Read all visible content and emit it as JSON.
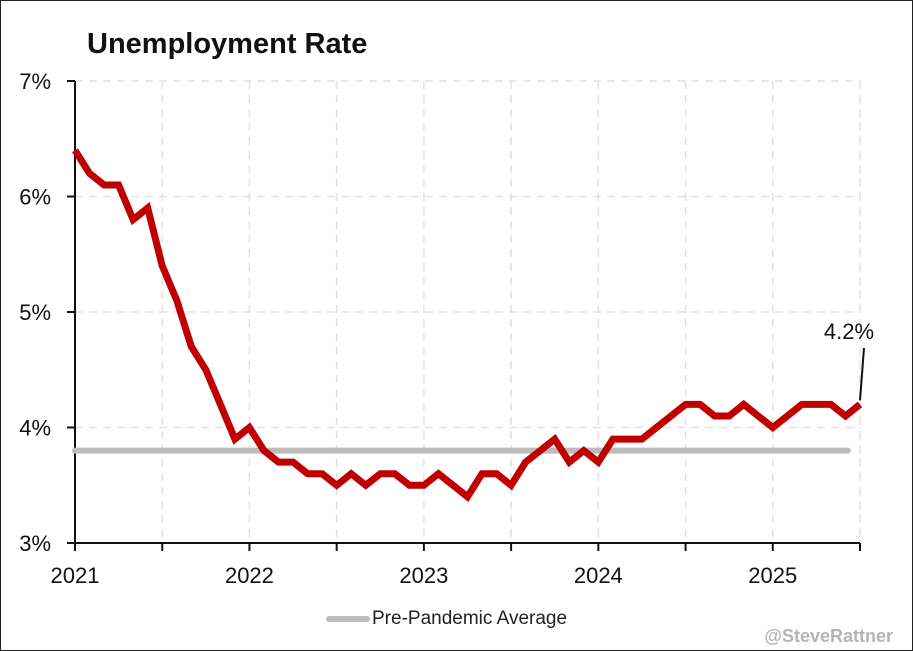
{
  "chart_data": {
    "type": "line",
    "title": "Unemployment Rate",
    "xlabel": "",
    "ylabel": "",
    "ylim": [
      3,
      7
    ],
    "xlim": [
      "2021-01",
      "2025-07"
    ],
    "y_ticks": [
      "3%",
      "4%",
      "5%",
      "6%",
      "7%"
    ],
    "y_tick_values": [
      3,
      4,
      5,
      6,
      7
    ],
    "x_ticks": [
      "2021",
      "2022",
      "2023",
      "2024",
      "2025"
    ],
    "grid": true,
    "legend_position": "bottom",
    "series": [
      {
        "color": "#c00000",
        "months": [
          "2021-01",
          "2021-02",
          "2021-03",
          "2021-04",
          "2021-05",
          "2021-06",
          "2021-07",
          "2021-08",
          "2021-09",
          "2021-10",
          "2021-11",
          "2021-12",
          "2022-01",
          "2022-02",
          "2022-03",
          "2022-04",
          "2022-05",
          "2022-06",
          "2022-07",
          "2022-08",
          "2022-09",
          "2022-10",
          "2022-11",
          "2022-12",
          "2023-01",
          "2023-02",
          "2023-03",
          "2023-04",
          "2023-05",
          "2023-06",
          "2023-07",
          "2023-08",
          "2023-09",
          "2023-10",
          "2023-11",
          "2023-12",
          "2024-01",
          "2024-02",
          "2024-03",
          "2024-04",
          "2024-05",
          "2024-06",
          "2024-07",
          "2024-08",
          "2024-09",
          "2024-10",
          "2024-11",
          "2024-12",
          "2025-01",
          "2025-02",
          "2025-03",
          "2025-04",
          "2025-05",
          "2025-06",
          "2025-07"
        ],
        "values": [
          6.4,
          6.2,
          6.1,
          6.1,
          5.8,
          5.9,
          5.4,
          5.1,
          4.7,
          4.5,
          4.2,
          3.9,
          4.0,
          3.8,
          3.7,
          3.7,
          3.6,
          3.6,
          3.5,
          3.6,
          3.5,
          3.6,
          3.6,
          3.5,
          3.5,
          3.6,
          3.5,
          3.4,
          3.6,
          3.6,
          3.5,
          3.7,
          3.8,
          3.9,
          3.7,
          3.8,
          3.7,
          3.9,
          3.9,
          3.9,
          4.0,
          4.1,
          4.2,
          4.2,
          4.1,
          4.1,
          4.2,
          4.1,
          4.0,
          4.1,
          4.2,
          4.2,
          4.2,
          4.1,
          4.2
        ]
      },
      {
        "name": "Pre-Pandemic Average",
        "color": "#bdbdbd",
        "values": [
          3.8
        ]
      }
    ],
    "annotations": [
      {
        "text": "4.2%",
        "x": "2025-07",
        "y": 4.2
      }
    ]
  },
  "credit": "@SteveRattner"
}
